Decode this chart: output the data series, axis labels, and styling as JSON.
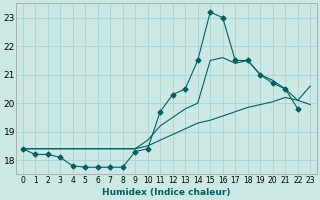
{
  "xlabel": "Humidex (Indice chaleur)",
  "bg_color": "#cce8e4",
  "grid_color": "#aad4d0",
  "line_color": "#006060",
  "x_values": [
    0,
    1,
    2,
    3,
    4,
    5,
    6,
    7,
    8,
    9,
    10,
    11,
    12,
    13,
    14,
    15,
    16,
    17,
    18,
    19,
    20,
    21,
    22,
    23
  ],
  "line_main_y": [
    18.4,
    18.2,
    18.2,
    18.1,
    17.8,
    17.75,
    17.75,
    17.75,
    17.75,
    18.3,
    18.4,
    19.7,
    20.3,
    20.5,
    21.5,
    23.2,
    23.0,
    21.5,
    21.5,
    21.0,
    20.7,
    20.5,
    19.8,
    null
  ],
  "line_upper_y": [
    18.4,
    18.4,
    18.4,
    18.4,
    18.4,
    18.4,
    18.4,
    18.4,
    18.4,
    18.4,
    18.7,
    19.2,
    19.5,
    19.8,
    20.0,
    21.5,
    21.6,
    21.4,
    21.5,
    21.0,
    20.8,
    20.5,
    20.1,
    20.6
  ],
  "line_lower_y": [
    18.4,
    18.4,
    18.4,
    18.4,
    18.4,
    18.4,
    18.4,
    18.4,
    18.4,
    18.4,
    18.5,
    18.7,
    18.9,
    19.1,
    19.3,
    19.4,
    19.55,
    19.7,
    19.85,
    19.95,
    20.05,
    20.2,
    20.1,
    19.95
  ],
  "ylim": [
    17.5,
    23.5
  ],
  "xlim": [
    -0.5,
    23.5
  ],
  "yticks": [
    18,
    19,
    20,
    21,
    22,
    23
  ],
  "xticks": [
    0,
    1,
    2,
    3,
    4,
    5,
    6,
    7,
    8,
    9,
    10,
    11,
    12,
    13,
    14,
    15,
    16,
    17,
    18,
    19,
    20,
    21,
    22,
    23
  ]
}
